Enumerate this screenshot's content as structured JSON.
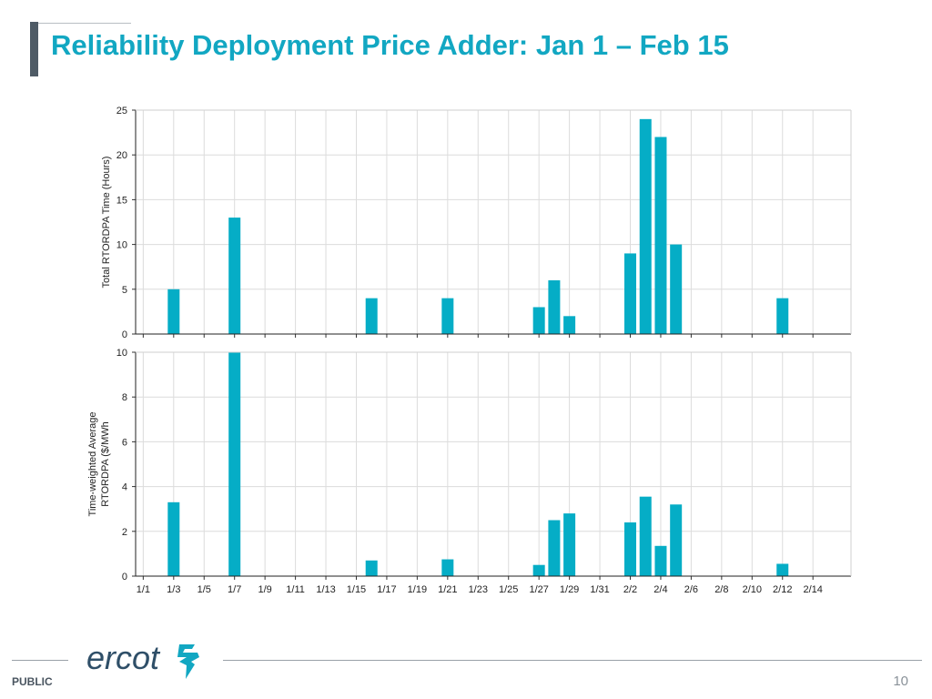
{
  "slide": {
    "title": "Reliability Deployment Price Adder: Jan 1 – Feb 15",
    "footer_label": "PUBLIC",
    "page_number": "10",
    "logo_text": "ercot",
    "accent_color": "#12a7c2",
    "bar_color": "#05adc6"
  },
  "chart_data": [
    {
      "type": "bar",
      "title": "",
      "xlabel": "",
      "ylabel": "Total RTORDPA Time (Hours)",
      "ylim": [
        0,
        25
      ],
      "yticks": [
        0,
        5,
        10,
        15,
        20,
        25
      ],
      "x_range": [
        0,
        46
      ],
      "x": [
        2,
        6,
        15,
        20,
        26,
        27,
        28,
        32,
        33,
        34,
        35,
        42
      ],
      "values": [
        5,
        13,
        4,
        4,
        3,
        6,
        2,
        9,
        24,
        22,
        10,
        4
      ],
      "grid": true,
      "show_x_tick_labels": false
    },
    {
      "type": "bar",
      "title": "",
      "xlabel": "",
      "ylabel": [
        "Time-weighted Average",
        "RTORDPA ($/MWh"
      ],
      "ylim": [
        0,
        10
      ],
      "yticks": [
        0,
        2,
        4,
        6,
        8,
        10
      ],
      "x_range": [
        0,
        46
      ],
      "x": [
        2,
        6,
        15,
        20,
        26,
        27,
        28,
        32,
        33,
        34,
        35,
        42
      ],
      "values": [
        3.3,
        10,
        0.7,
        0.75,
        0.5,
        2.5,
        2.8,
        2.4,
        3.55,
        1.35,
        3.2,
        0.55
      ],
      "grid": true,
      "show_x_tick_labels": true
    }
  ],
  "x_ticks": [
    {
      "pos": 0,
      "label": "1/1"
    },
    {
      "pos": 2,
      "label": "1/3"
    },
    {
      "pos": 4,
      "label": "1/5"
    },
    {
      "pos": 6,
      "label": "1/7"
    },
    {
      "pos": 8,
      "label": "1/9"
    },
    {
      "pos": 10,
      "label": "1/11"
    },
    {
      "pos": 12,
      "label": "1/13"
    },
    {
      "pos": 14,
      "label": "1/15"
    },
    {
      "pos": 16,
      "label": "1/17"
    },
    {
      "pos": 18,
      "label": "1/19"
    },
    {
      "pos": 20,
      "label": "1/21"
    },
    {
      "pos": 22,
      "label": "1/23"
    },
    {
      "pos": 24,
      "label": "1/25"
    },
    {
      "pos": 26,
      "label": "1/27"
    },
    {
      "pos": 28,
      "label": "1/29"
    },
    {
      "pos": 30,
      "label": "1/31"
    },
    {
      "pos": 32,
      "label": "2/2"
    },
    {
      "pos": 34,
      "label": "2/4"
    },
    {
      "pos": 36,
      "label": "2/6"
    },
    {
      "pos": 38,
      "label": "2/8"
    },
    {
      "pos": 40,
      "label": "2/10"
    },
    {
      "pos": 42,
      "label": "2/12"
    },
    {
      "pos": 44,
      "label": "2/14"
    }
  ]
}
